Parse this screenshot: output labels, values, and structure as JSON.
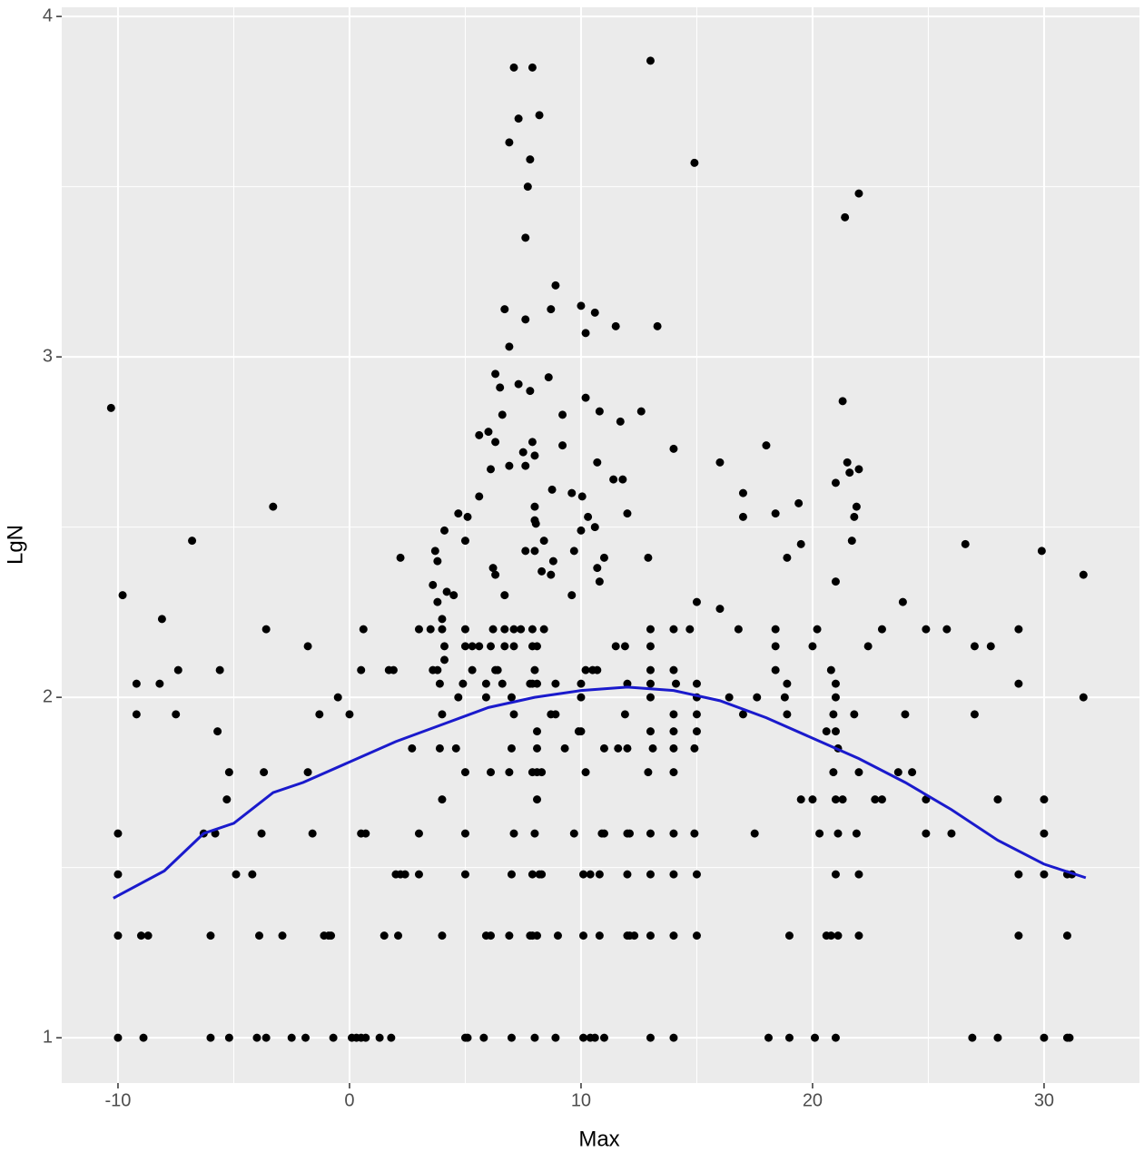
{
  "chart_data": {
    "type": "scatter",
    "x_label": "Max",
    "y_label": "LgN",
    "xlim": [
      -12.43,
      34.12
    ],
    "ylim": [
      0.867,
      4.027
    ],
    "xticks": [
      -10,
      0,
      10,
      20,
      30
    ],
    "yticks": [
      1,
      2,
      3,
      4
    ],
    "xminor": [
      -5,
      5,
      15,
      25
    ],
    "yminor": [
      1.5,
      2.5,
      3.5
    ],
    "grid": true,
    "color": "#000000",
    "points": [
      [
        -10,
        1
      ],
      [
        -8.9,
        1
      ],
      [
        -6,
        1
      ],
      [
        -5.2,
        1
      ],
      [
        -4,
        1
      ],
      [
        -3.6,
        1
      ],
      [
        -2.5,
        1
      ],
      [
        -1.9,
        1
      ],
      [
        -0.7,
        1
      ],
      [
        0.1,
        1
      ],
      [
        0.3,
        1
      ],
      [
        0.5,
        1
      ],
      [
        0.7,
        1
      ],
      [
        1.3,
        1
      ],
      [
        1.8,
        1
      ],
      [
        5,
        1
      ],
      [
        5.1,
        1
      ],
      [
        5.8,
        1
      ],
      [
        7,
        1
      ],
      [
        8,
        1
      ],
      [
        8.9,
        1
      ],
      [
        10.1,
        1
      ],
      [
        10.4,
        1
      ],
      [
        10.6,
        1
      ],
      [
        11,
        1
      ],
      [
        13,
        1
      ],
      [
        14,
        1
      ],
      [
        18.1,
        1
      ],
      [
        19,
        1
      ],
      [
        20.1,
        1
      ],
      [
        21,
        1
      ],
      [
        26.9,
        1
      ],
      [
        28,
        1
      ],
      [
        30,
        1
      ],
      [
        31,
        1
      ],
      [
        31.1,
        1
      ],
      [
        -10,
        1.3
      ],
      [
        -9,
        1.3
      ],
      [
        -8.7,
        1.3
      ],
      [
        -6,
        1.3
      ],
      [
        -3.9,
        1.3
      ],
      [
        -2.9,
        1.3
      ],
      [
        -1.1,
        1.3
      ],
      [
        -0.9,
        1.3
      ],
      [
        -0.8,
        1.3
      ],
      [
        1.5,
        1.3
      ],
      [
        2.1,
        1.3
      ],
      [
        4,
        1.3
      ],
      [
        5.9,
        1.3
      ],
      [
        6.1,
        1.3
      ],
      [
        6.9,
        1.3
      ],
      [
        7.8,
        1.3
      ],
      [
        7.9,
        1.3
      ],
      [
        8.1,
        1.3
      ],
      [
        9,
        1.3
      ],
      [
        10.1,
        1.3
      ],
      [
        10.8,
        1.3
      ],
      [
        12,
        1.3
      ],
      [
        12.1,
        1.3
      ],
      [
        12.3,
        1.3
      ],
      [
        13,
        1.3
      ],
      [
        14,
        1.3
      ],
      [
        15,
        1.3
      ],
      [
        19,
        1.3
      ],
      [
        20.6,
        1.3
      ],
      [
        20.8,
        1.3
      ],
      [
        21.1,
        1.3
      ],
      [
        22,
        1.3
      ],
      [
        28.9,
        1.3
      ],
      [
        31,
        1.3
      ],
      [
        -10,
        1.48
      ],
      [
        -4.9,
        1.48
      ],
      [
        -4.2,
        1.48
      ],
      [
        2,
        1.48
      ],
      [
        2.2,
        1.48
      ],
      [
        2.4,
        1.48
      ],
      [
        3,
        1.48
      ],
      [
        5,
        1.48
      ],
      [
        7,
        1.48
      ],
      [
        7.9,
        1.48
      ],
      [
        8.2,
        1.48
      ],
      [
        8.3,
        1.48
      ],
      [
        10.1,
        1.48
      ],
      [
        10.4,
        1.48
      ],
      [
        10.8,
        1.48
      ],
      [
        12,
        1.48
      ],
      [
        13,
        1.48
      ],
      [
        14,
        1.48
      ],
      [
        15,
        1.48
      ],
      [
        21,
        1.48
      ],
      [
        22,
        1.48
      ],
      [
        28.9,
        1.48
      ],
      [
        30,
        1.48
      ],
      [
        31,
        1.48
      ],
      [
        31.2,
        1.48
      ],
      [
        -10,
        1.6
      ],
      [
        -6.3,
        1.6
      ],
      [
        -5.8,
        1.6
      ],
      [
        -3.8,
        1.6
      ],
      [
        -1.6,
        1.6
      ],
      [
        0.5,
        1.6
      ],
      [
        0.7,
        1.6
      ],
      [
        3,
        1.6
      ],
      [
        5,
        1.6
      ],
      [
        7.1,
        1.6
      ],
      [
        8,
        1.6
      ],
      [
        9.7,
        1.6
      ],
      [
        10.9,
        1.6
      ],
      [
        11,
        1.6
      ],
      [
        12,
        1.6
      ],
      [
        12.1,
        1.6
      ],
      [
        13,
        1.6
      ],
      [
        14,
        1.6
      ],
      [
        14.9,
        1.6
      ],
      [
        17.5,
        1.6
      ],
      [
        20.3,
        1.6
      ],
      [
        21.1,
        1.6
      ],
      [
        21.9,
        1.6
      ],
      [
        24.9,
        1.6
      ],
      [
        26,
        1.6
      ],
      [
        30,
        1.6
      ],
      [
        -5.3,
        1.7
      ],
      [
        4,
        1.7
      ],
      [
        8.1,
        1.7
      ],
      [
        19.5,
        1.7
      ],
      [
        20,
        1.7
      ],
      [
        21,
        1.7
      ],
      [
        21.3,
        1.7
      ],
      [
        22.7,
        1.7
      ],
      [
        23,
        1.7
      ],
      [
        24.9,
        1.7
      ],
      [
        28,
        1.7
      ],
      [
        30,
        1.7
      ],
      [
        -5.2,
        1.78
      ],
      [
        -3.7,
        1.78
      ],
      [
        -1.8,
        1.78
      ],
      [
        5,
        1.78
      ],
      [
        6.1,
        1.78
      ],
      [
        6.9,
        1.78
      ],
      [
        7.9,
        1.78
      ],
      [
        8.1,
        1.78
      ],
      [
        8.3,
        1.78
      ],
      [
        10.2,
        1.78
      ],
      [
        12.9,
        1.78
      ],
      [
        14,
        1.78
      ],
      [
        20.9,
        1.78
      ],
      [
        22,
        1.78
      ],
      [
        23.7,
        1.78
      ],
      [
        24.3,
        1.78
      ],
      [
        2.7,
        1.85
      ],
      [
        3.9,
        1.85
      ],
      [
        4.6,
        1.85
      ],
      [
        7,
        1.85
      ],
      [
        8.1,
        1.85
      ],
      [
        9.3,
        1.85
      ],
      [
        11,
        1.85
      ],
      [
        11.6,
        1.85
      ],
      [
        12,
        1.85
      ],
      [
        13.1,
        1.85
      ],
      [
        14,
        1.85
      ],
      [
        14.9,
        1.85
      ],
      [
        21.1,
        1.85
      ],
      [
        -5.7,
        1.9
      ],
      [
        8.1,
        1.9
      ],
      [
        9.9,
        1.9
      ],
      [
        10,
        1.9
      ],
      [
        13,
        1.9
      ],
      [
        14,
        1.9
      ],
      [
        15,
        1.9
      ],
      [
        20.6,
        1.9
      ],
      [
        21,
        1.9
      ],
      [
        -9.2,
        1.95
      ],
      [
        -7.5,
        1.95
      ],
      [
        -1.3,
        1.95
      ],
      [
        0,
        1.95
      ],
      [
        4,
        1.95
      ],
      [
        7.1,
        1.95
      ],
      [
        8.7,
        1.95
      ],
      [
        8.9,
        1.95
      ],
      [
        11.9,
        1.95
      ],
      [
        14,
        1.95
      ],
      [
        15,
        1.95
      ],
      [
        17,
        1.95
      ],
      [
        18.9,
        1.95
      ],
      [
        20.9,
        1.95
      ],
      [
        21.8,
        1.95
      ],
      [
        24,
        1.95
      ],
      [
        27,
        1.95
      ],
      [
        -0.5,
        2
      ],
      [
        4.7,
        2
      ],
      [
        5.9,
        2
      ],
      [
        7,
        2
      ],
      [
        10,
        2
      ],
      [
        13,
        2
      ],
      [
        15,
        2
      ],
      [
        16.4,
        2
      ],
      [
        17.6,
        2
      ],
      [
        18.8,
        2
      ],
      [
        21,
        2
      ],
      [
        31.7,
        2
      ],
      [
        -9.2,
        2.04
      ],
      [
        -8.2,
        2.04
      ],
      [
        3.9,
        2.04
      ],
      [
        4.9,
        2.04
      ],
      [
        5.9,
        2.04
      ],
      [
        6.6,
        2.04
      ],
      [
        7.8,
        2.04
      ],
      [
        7.9,
        2.04
      ],
      [
        8.1,
        2.04
      ],
      [
        8.9,
        2.04
      ],
      [
        10,
        2.04
      ],
      [
        12,
        2.04
      ],
      [
        13,
        2.04
      ],
      [
        14.1,
        2.04
      ],
      [
        15,
        2.04
      ],
      [
        18.9,
        2.04
      ],
      [
        21,
        2.04
      ],
      [
        28.9,
        2.04
      ],
      [
        -7.4,
        2.08
      ],
      [
        -5.6,
        2.08
      ],
      [
        0.5,
        2.08
      ],
      [
        1.7,
        2.08
      ],
      [
        1.9,
        2.08
      ],
      [
        3.6,
        2.08
      ],
      [
        3.8,
        2.08
      ],
      [
        5.3,
        2.08
      ],
      [
        6.3,
        2.08
      ],
      [
        6.4,
        2.08
      ],
      [
        8,
        2.08
      ],
      [
        10.2,
        2.08
      ],
      [
        10.5,
        2.08
      ],
      [
        10.7,
        2.08
      ],
      [
        13,
        2.08
      ],
      [
        14,
        2.08
      ],
      [
        18.4,
        2.08
      ],
      [
        20.8,
        2.08
      ],
      [
        -1.8,
        2.15
      ],
      [
        4.1,
        2.15
      ],
      [
        5,
        2.15
      ],
      [
        5.3,
        2.15
      ],
      [
        5.6,
        2.15
      ],
      [
        6.1,
        2.15
      ],
      [
        6.7,
        2.15
      ],
      [
        7.1,
        2.15
      ],
      [
        7.9,
        2.15
      ],
      [
        8.1,
        2.15
      ],
      [
        11.9,
        2.15
      ],
      [
        11.5,
        2.15
      ],
      [
        13,
        2.15
      ],
      [
        18.4,
        2.15
      ],
      [
        20,
        2.15
      ],
      [
        22.4,
        2.15
      ],
      [
        27,
        2.15
      ],
      [
        27.7,
        2.15
      ],
      [
        -3.6,
        2.2
      ],
      [
        0.6,
        2.2
      ],
      [
        3,
        2.2
      ],
      [
        3.5,
        2.2
      ],
      [
        4,
        2.2
      ],
      [
        5,
        2.2
      ],
      [
        6.2,
        2.2
      ],
      [
        6.7,
        2.2
      ],
      [
        7.1,
        2.2
      ],
      [
        7.4,
        2.2
      ],
      [
        7.9,
        2.2
      ],
      [
        8.4,
        2.2
      ],
      [
        13,
        2.2
      ],
      [
        14,
        2.2
      ],
      [
        14.7,
        2.2
      ],
      [
        16.8,
        2.2
      ],
      [
        18.4,
        2.2
      ],
      [
        20.2,
        2.2
      ],
      [
        23,
        2.2
      ],
      [
        24.9,
        2.2
      ],
      [
        25.8,
        2.2
      ],
      [
        28.9,
        2.2
      ],
      [
        -10.3,
        2.85
      ],
      [
        -9.8,
        2.3
      ],
      [
        -8.1,
        2.23
      ],
      [
        -6.8,
        2.46
      ],
      [
        -3.3,
        2.56
      ],
      [
        2.2,
        2.41
      ],
      [
        3.7,
        2.43
      ],
      [
        3.8,
        2.4
      ],
      [
        4.1,
        2.49
      ],
      [
        3.6,
        2.33
      ],
      [
        3.8,
        2.28
      ],
      [
        4.2,
        2.31
      ],
      [
        4.5,
        2.3
      ],
      [
        4,
        2.23
      ],
      [
        4.1,
        2.11
      ],
      [
        4.7,
        2.54
      ],
      [
        5,
        2.46
      ],
      [
        5.1,
        2.53
      ],
      [
        5.6,
        2.59
      ],
      [
        5.6,
        2.77
      ],
      [
        6,
        2.78
      ],
      [
        6.1,
        2.67
      ],
      [
        6.2,
        2.38
      ],
      [
        6.3,
        2.36
      ],
      [
        6.3,
        2.95
      ],
      [
        6.3,
        2.75
      ],
      [
        6.5,
        2.91
      ],
      [
        6.6,
        2.83
      ],
      [
        6.7,
        3.14
      ],
      [
        6.7,
        2.3
      ],
      [
        6.9,
        3.03
      ],
      [
        6.9,
        2.68
      ],
      [
        6.9,
        3.63
      ],
      [
        7.1,
        3.85
      ],
      [
        7.3,
        2.92
      ],
      [
        7.3,
        3.7
      ],
      [
        7.5,
        2.72
      ],
      [
        7.6,
        3.11
      ],
      [
        7.6,
        2.43
      ],
      [
        7.6,
        3.35
      ],
      [
        7.6,
        2.68
      ],
      [
        7.7,
        3.5
      ],
      [
        7.8,
        3.58
      ],
      [
        7.9,
        3.85
      ],
      [
        7.8,
        2.9
      ],
      [
        7.9,
        2.75
      ],
      [
        8,
        2.71
      ],
      [
        8,
        2.56
      ],
      [
        8,
        2.52
      ],
      [
        8.05,
        2.51
      ],
      [
        8,
        2.43
      ],
      [
        8.2,
        3.71
      ],
      [
        8.3,
        2.37
      ],
      [
        8.4,
        2.46
      ],
      [
        8.6,
        2.94
      ],
      [
        8.7,
        3.14
      ],
      [
        8.7,
        2.36
      ],
      [
        8.75,
        2.61
      ],
      [
        8.8,
        2.4
      ],
      [
        8.9,
        3.21
      ],
      [
        9.2,
        2.74
      ],
      [
        9.2,
        2.83
      ],
      [
        9.6,
        2.6
      ],
      [
        9.6,
        2.3
      ],
      [
        9.7,
        2.43
      ],
      [
        10,
        2.49
      ],
      [
        10.05,
        2.59
      ],
      [
        10,
        3.15
      ],
      [
        10.2,
        2.88
      ],
      [
        10.2,
        3.07
      ],
      [
        10.3,
        2.53
      ],
      [
        10.6,
        3.13
      ],
      [
        10.6,
        2.5
      ],
      [
        10.7,
        2.69
      ],
      [
        10.7,
        2.38
      ],
      [
        10.8,
        2.34
      ],
      [
        10.8,
        2.84
      ],
      [
        11,
        2.41
      ],
      [
        11.5,
        3.09
      ],
      [
        11.4,
        2.64
      ],
      [
        11.7,
        2.81
      ],
      [
        11.8,
        2.64
      ],
      [
        12,
        2.54
      ],
      [
        12.6,
        2.84
      ],
      [
        12.9,
        2.41
      ],
      [
        13,
        3.87
      ],
      [
        13.3,
        3.09
      ],
      [
        14,
        2.73
      ],
      [
        14.9,
        3.57
      ],
      [
        16,
        2.69
      ],
      [
        16,
        2.26
      ],
      [
        15,
        2.28
      ],
      [
        17,
        2.6
      ],
      [
        17,
        2.53
      ],
      [
        18,
        2.74
      ],
      [
        18.4,
        2.54
      ],
      [
        18.9,
        2.41
      ],
      [
        19.4,
        2.57
      ],
      [
        19.5,
        2.45
      ],
      [
        21,
        2.63
      ],
      [
        21,
        2.34
      ],
      [
        21.3,
        2.87
      ],
      [
        21.4,
        3.41
      ],
      [
        21.5,
        2.69
      ],
      [
        21.6,
        2.66
      ],
      [
        21.7,
        2.46
      ],
      [
        21.8,
        2.53
      ],
      [
        21.9,
        2.56
      ],
      [
        22,
        2.67
      ],
      [
        22,
        3.48
      ],
      [
        23.9,
        2.28
      ],
      [
        26.6,
        2.45
      ],
      [
        29.9,
        2.43
      ],
      [
        31.7,
        2.36
      ]
    ],
    "smooth": {
      "color": "#1a1acc",
      "x": [
        -10.2,
        -8,
        -6.3,
        -5,
        -3.3,
        -2,
        0,
        2,
        4,
        6,
        8,
        10,
        12,
        14,
        16,
        18,
        20,
        22,
        24,
        26,
        28,
        30,
        31.8
      ],
      "values": [
        1.41,
        1.49,
        1.6,
        1.63,
        1.72,
        1.75,
        1.81,
        1.87,
        1.92,
        1.97,
        2.0,
        2.02,
        2.03,
        2.02,
        1.99,
        1.94,
        1.88,
        1.82,
        1.75,
        1.67,
        1.58,
        1.51,
        1.47
      ]
    }
  }
}
